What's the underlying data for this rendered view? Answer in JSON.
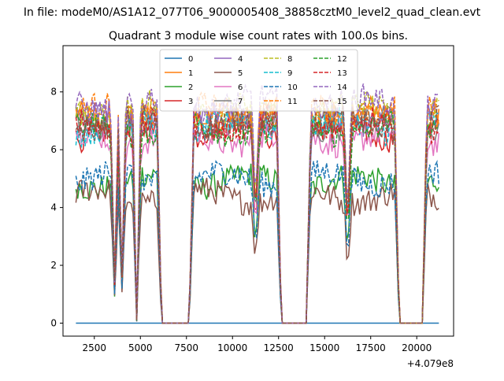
{
  "figure": {
    "suptitle": "In file: modeM0/AS1A12_077T06_9000005408_38858cztM0_level2_quad_clean.evt"
  },
  "chart_data": {
    "type": "line",
    "title": "Quadrant 3 module wise count rates with 100.0s bins.",
    "xlabel": "",
    "ylabel": "",
    "x_offset_label": "+4.079e8",
    "xlim": [
      800,
      22000
    ],
    "ylim": [
      -0.45,
      9.6
    ],
    "xticks": [
      2500,
      5000,
      7500,
      10000,
      12500,
      15000,
      17500,
      20000
    ],
    "xtick_labels": [
      "2500",
      "5000",
      "7500",
      "10000",
      "12500",
      "15000",
      "17500",
      "20000"
    ],
    "yticks": [
      0,
      2,
      4,
      6,
      8
    ],
    "ytick_labels": [
      "0",
      "2",
      "4",
      "6",
      "8"
    ],
    "grid": false,
    "legend": {
      "placement": "top-center",
      "columns": 4
    },
    "x_start": 1500,
    "x_step": 100,
    "n_points": 198,
    "gaps": [
      [
        6150,
        7650
      ],
      [
        12650,
        14000
      ],
      [
        19050,
        20300
      ]
    ],
    "dips": [
      [
        3600,
        1.3
      ],
      [
        4000,
        1.5
      ],
      [
        4800,
        0.1
      ],
      [
        11250,
        3.4
      ],
      [
        16250,
        3.0
      ]
    ],
    "series": [
      {
        "name": "0",
        "color": "#1f77b4",
        "dash": "solid",
        "base": 0.0
      },
      {
        "name": "1",
        "color": "#ff7f0e",
        "dash": "solid",
        "base": 7.2
      },
      {
        "name": "2",
        "color": "#2ca02c",
        "dash": "solid",
        "base": 4.9
      },
      {
        "name": "3",
        "color": "#d62728",
        "dash": "solid",
        "base": 6.6
      },
      {
        "name": "4",
        "color": "#9467bd",
        "dash": "solid",
        "base": 7.1
      },
      {
        "name": "5",
        "color": "#8c564b",
        "dash": "solid",
        "base": 4.4
      },
      {
        "name": "6",
        "color": "#e377c2",
        "dash": "solid",
        "base": 6.4
      },
      {
        "name": "7",
        "color": "#7f7f7f",
        "dash": "solid",
        "base": 6.9
      },
      {
        "name": "8",
        "color": "#bcbd22",
        "dash": "dashed",
        "base": 7.4
      },
      {
        "name": "9",
        "color": "#17becf",
        "dash": "dashed",
        "base": 6.8
      },
      {
        "name": "10",
        "color": "#1f77b4",
        "dash": "dashed",
        "base": 5.0
      },
      {
        "name": "11",
        "color": "#ff7f0e",
        "dash": "dashed",
        "base": 7.3
      },
      {
        "name": "12",
        "color": "#2ca02c",
        "dash": "dashed",
        "base": 6.7
      },
      {
        "name": "13",
        "color": "#d62728",
        "dash": "dashed",
        "base": 6.9
      },
      {
        "name": "14",
        "color": "#9467bd",
        "dash": "dashed",
        "base": 7.6
      },
      {
        "name": "15",
        "color": "#8c564b",
        "dash": "dashed",
        "base": 6.9
      }
    ]
  }
}
